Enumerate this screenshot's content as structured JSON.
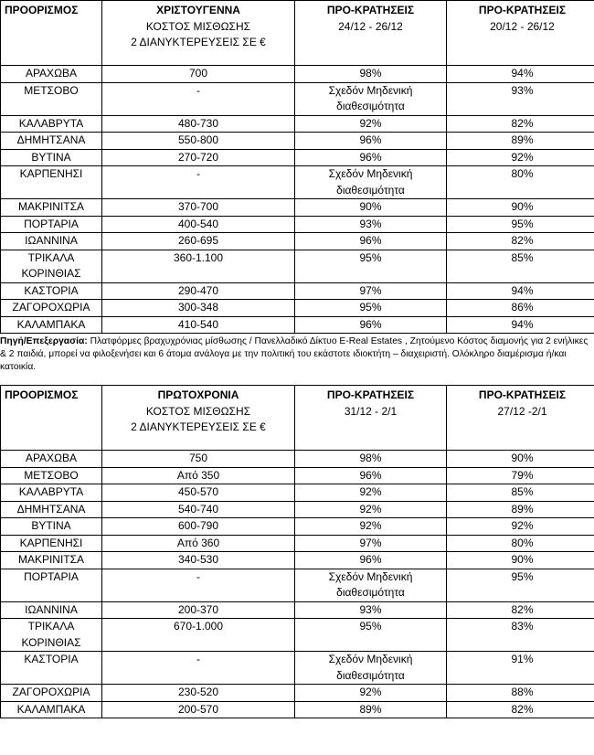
{
  "tables": [
    {
      "header": [
        {
          "title": "ΠΡΟΟΡΙΣΜΟΣ"
        },
        {
          "title": "ΧΡΙΣΤΟΥΓΕΝΝΑ",
          "subtitle": "ΚΟΣΤΟΣ ΜΙΣΘΩΣΗΣ\n2 ΔΙΑΝΥΚΤΕΡΕΥΣΕΙΣ ΣΕ €"
        },
        {
          "title": "ΠΡΟ-ΚΡΑΤΗΣΕΙΣ",
          "subtitle": "24/12 - 26/12"
        },
        {
          "title": "ΠΡΟ-ΚΡΑΤΗΣΕΙΣ",
          "subtitle": "20/12 - 26/12"
        }
      ],
      "rows": [
        [
          "ΑΡΑΧΩΒΑ",
          "700",
          "98%",
          "94%"
        ],
        [
          "ΜΕΤΣΟΒΟ",
          "-",
          "Σχεδόν Μηδενική\nδιαθεσιμότητα",
          "93%"
        ],
        [
          "ΚΑΛΑΒΡΥΤΑ",
          "480-730",
          "92%",
          "82%"
        ],
        [
          "ΔΗΜΗΤΣΑΝΑ",
          "550-800",
          "96%",
          "89%"
        ],
        [
          "ΒΥΤΙΝΑ",
          "270-720",
          "96%",
          "92%"
        ],
        [
          "ΚΑΡΠΕΝΗΣΙ",
          "-",
          "Σχεδόν Μηδενική\nδιαθεσιμότητα",
          "80%"
        ],
        [
          "ΜΑΚΡΙΝΙΤΣΑ",
          "370-700",
          "90%",
          "90%"
        ],
        [
          "ΠΟΡΤΑΡΙΑ",
          "400-540",
          "93%",
          "95%"
        ],
        [
          "ΙΩΑΝΝΙΝΑ",
          "260-695",
          "96%",
          "82%"
        ],
        [
          "ΤΡΙΚΑΛΑ\nΚΟΡΙΝΘΙΑΣ",
          "360-1.100",
          "95%",
          "85%"
        ],
        [
          "ΚΑΣΤΟΡΙΑ",
          "290-470",
          "97%",
          "94%"
        ],
        [
          "ΖΑΓΟΡΟΧΩΡΙΑ",
          "300-348",
          "95%",
          "86%"
        ],
        [
          "ΚΑΛΑΜΠΑΚΑ",
          "410-540",
          "96%",
          "94%"
        ]
      ]
    },
    {
      "header": [
        {
          "title": "ΠΡΟΟΡΙΣΜΟΣ"
        },
        {
          "title": "ΠΡΩΤΟΧΡΟΝΙΑ",
          "subtitle": "ΚΟΣΤΟΣ ΜΙΣΘΩΣΗΣ\n2 ΔΙΑΝΥΚΤΕΡΕΥΣΕΙΣ ΣΕ €"
        },
        {
          "title": "ΠΡΟ-ΚΡΑΤΗΣΕΙΣ",
          "subtitle": "31/12 - 2/1"
        },
        {
          "title": "ΠΡΟ-ΚΡΑΤΗΣΕΙΣ",
          "subtitle": "27/12 -2/1"
        }
      ],
      "rows": [
        [
          "ΑΡΑΧΩΒΑ",
          "750",
          "98%",
          "90%"
        ],
        [
          "ΜΕΤΣΟΒΟ",
          "Από 350",
          "96%",
          "79%"
        ],
        [
          "ΚΑΛΑΒΡΥΤΑ",
          "450-570",
          "92%",
          "85%"
        ],
        [
          "ΔΗΜΗΤΣΑΝΑ",
          "540-740",
          "92%",
          "89%"
        ],
        [
          "ΒΥΤΙΝΑ",
          "600-790",
          "92%",
          "92%"
        ],
        [
          "ΚΑΡΠΕΝΗΣΙ",
          "Από 360",
          "97%",
          "80%"
        ],
        [
          "ΜΑΚΡΙΝΙΤΣΑ",
          "340-530",
          "96%",
          "90%"
        ],
        [
          "ΠΟΡΤΑΡΙΑ",
          "-",
          "Σχεδόν Μηδενική\nδιαθεσιμότητα",
          "95%"
        ],
        [
          "ΙΩΑΝΝΙΝΑ",
          "200-370",
          "93%",
          "82%"
        ],
        [
          "ΤΡΙΚΑΛΑ\nΚΟΡΙΝΘΙΑΣ",
          "670-1.000",
          "95%",
          "83%"
        ],
        [
          "ΚΑΣΤΟΡΙΑ",
          "-",
          "Σχεδόν Μηδενική\nδιαθεσιμότητα",
          "91%"
        ],
        [
          "ΖΑΓΟΡΟΧΩΡΙΑ",
          "230-520",
          "92%",
          "88%"
        ],
        [
          "ΚΑΛΑΜΠΑΚΑ",
          "200-570",
          "89%",
          "82%"
        ]
      ]
    }
  ],
  "note": {
    "label": "Πηγή/Επεξεργασία:",
    "text": " Πλατφόρμες βραχυχρόνιας μίσθωσης / Πανελλαδικό Δίκτυο E-Real Estates , Ζητούμενο Κόστος διαμονής για 2 ενήλικες & 2 παιδιά, μπορεί να φιλοξενήσει και 6 άτομα ανάλογα με την πολιτική του εκάστοτε ιδιοκτήτη – διαχειριστή. Ολόκληρο διαμέρισμα ή/και κατοικία."
  }
}
